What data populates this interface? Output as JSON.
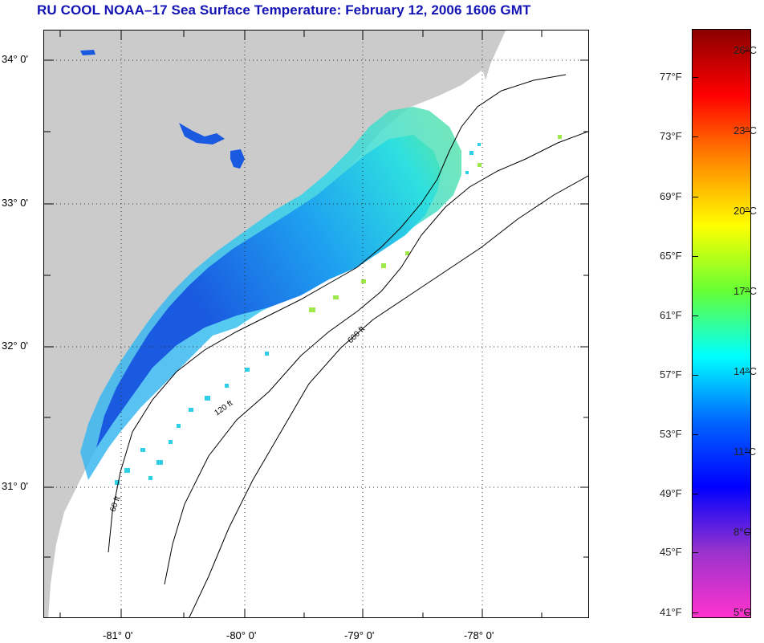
{
  "title": "RU COOL  NOAA–17  Sea Surface Temperature:  February 12, 2006 1606 GMT",
  "map": {
    "latitude_labels": [
      "34° 0'",
      "33° 0'",
      "32° 0'",
      "31° 0'"
    ],
    "longitude_labels": [
      "-81° 0'",
      "-80° 0'",
      "-79° 0'",
      "-78° 0'"
    ],
    "isobath_labels": [
      "60 ft",
      "120 ft",
      "600 ft"
    ],
    "colors": {
      "land": "#cbcbcb",
      "ocean_nodata": "#ffffff",
      "cold_water": "#1a5ae0",
      "mid_water": "#1ea0f0",
      "warm_water": "#2ee0e0",
      "warmest_water": "#9ee84a"
    }
  },
  "colorbar": {
    "fahrenheit_labels": [
      "77°F",
      "73°F",
      "69°F",
      "65°F",
      "61°F",
      "57°F",
      "53°F",
      "49°F",
      "45°F",
      "41°F"
    ],
    "celsius_labels": [
      "26°C",
      "23°C",
      "20°C",
      "17°C",
      "14°C",
      "11°C",
      "8°C",
      "5°C"
    ],
    "gradient_colors": [
      "#8b0000",
      "#ff0000",
      "#ff8800",
      "#ffff00",
      "#66ff33",
      "#00ffff",
      "#0066ff",
      "#0000ff",
      "#9933cc",
      "#ff33cc"
    ]
  }
}
